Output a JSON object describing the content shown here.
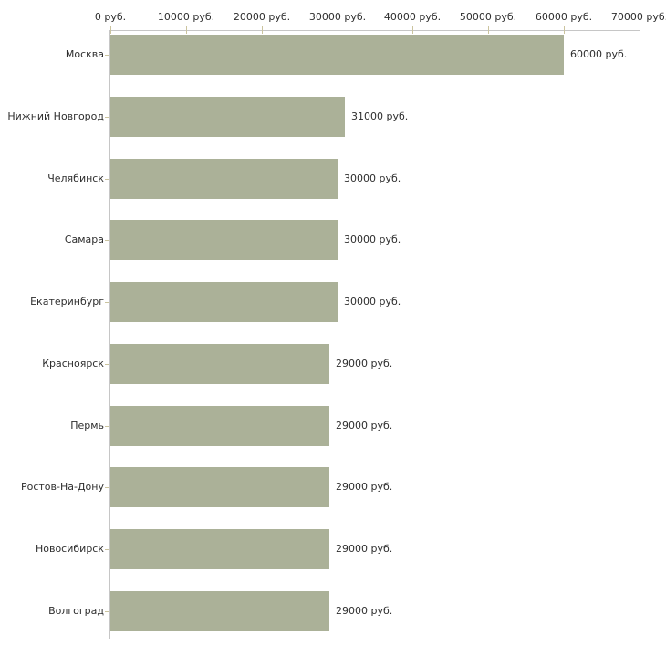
{
  "chart_data": {
    "type": "bar",
    "orientation": "horizontal",
    "title": "",
    "xlabel": "",
    "ylabel": "",
    "categories": [
      "Москва",
      "Нижний Новгород",
      "Челябинск",
      "Самара",
      "Екатеринбург",
      "Красноярск",
      "Пермь",
      "Ростов-На-Дону",
      "Новосибирск",
      "Волгоград"
    ],
    "values": [
      60000,
      31000,
      30000,
      30000,
      30000,
      29000,
      29000,
      29000,
      29000,
      29000
    ],
    "value_labels": [
      "60000 руб.",
      "31000 руб.",
      "30000 руб.",
      "30000 руб.",
      "30000 руб.",
      "29000 руб.",
      "29000 руб.",
      "29000 руб.",
      "29000 руб.",
      "29000 руб."
    ],
    "x_ticks": [
      0,
      10000,
      20000,
      30000,
      40000,
      50000,
      60000,
      70000
    ],
    "x_tick_labels": [
      "0 руб.",
      "10000 руб.",
      "20000 руб.",
      "30000 руб.",
      "40000 руб.",
      "50000 руб.",
      "60000 руб.",
      "70000 руб."
    ],
    "xlim": [
      0,
      70000
    ],
    "grid": false,
    "legend": "none",
    "colors": {
      "bar": "#abb198",
      "axis_line": "#c6c6c6",
      "tick": "#cbc49e",
      "text": "#2e2e2e",
      "background": "#ffffff"
    }
  }
}
